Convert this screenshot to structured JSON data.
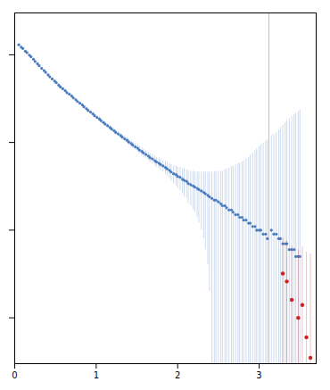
{
  "chart_data": {
    "type": "scatter",
    "log": "y",
    "tick_labels": "x",
    "grid": false,
    "xlim": [
      0,
      3.7
    ],
    "xticks": [
      0,
      1,
      2,
      3
    ],
    "ylim": [
      0.0003,
      3.0
    ],
    "yticks": [
      0.001,
      0.01,
      0.1,
      1
    ],
    "vline": {
      "x": 3.12,
      "color": "#aac4e0"
    },
    "series": [
      {
        "color": "#4a7bbf",
        "marker": "circle",
        "x": [
          0.05,
          0.08,
          0.1,
          0.13,
          0.15,
          0.18,
          0.2,
          0.23,
          0.25,
          0.28,
          0.3,
          0.33,
          0.36,
          0.38,
          0.41,
          0.43,
          0.46,
          0.49,
          0.51,
          0.54,
          0.56,
          0.59,
          0.62,
          0.64,
          0.67,
          0.7,
          0.72,
          0.75,
          0.77,
          0.8,
          0.83,
          0.85,
          0.88,
          0.9,
          0.93,
          0.96,
          0.98,
          1.01,
          1.04,
          1.06,
          1.09,
          1.11,
          1.14,
          1.17,
          1.19,
          1.22,
          1.24,
          1.27,
          1.3,
          1.32,
          1.35,
          1.38,
          1.4,
          1.43,
          1.45,
          1.48,
          1.51,
          1.53,
          1.56,
          1.58,
          1.61,
          1.64,
          1.66,
          1.69,
          1.72,
          1.74,
          1.77,
          1.79,
          1.82,
          1.85,
          1.87,
          1.9,
          1.92,
          1.95,
          1.98,
          2.0,
          2.03,
          2.06,
          2.08,
          2.11,
          2.13,
          2.16,
          2.19,
          2.21,
          2.24,
          2.26,
          2.29,
          2.32,
          2.34,
          2.37,
          2.39,
          2.42,
          2.45,
          2.47,
          2.5,
          2.53,
          2.55,
          2.58,
          2.6,
          2.63,
          2.66,
          2.68,
          2.71,
          2.74,
          2.76,
          2.79,
          2.81,
          2.84,
          2.87,
          2.89,
          2.92,
          2.95,
          2.97,
          3.0,
          3.02,
          3.05,
          3.08,
          3.1,
          3.15,
          3.18,
          3.21,
          3.24,
          3.26,
          3.29,
          3.32,
          3.34,
          3.37,
          3.4,
          3.43,
          3.45,
          3.48,
          3.5
        ],
        "values": [
          1.3,
          1.22,
          1.18,
          1.1,
          1.06,
          0.99,
          0.95,
          0.89,
          0.84,
          0.79,
          0.75,
          0.7,
          0.66,
          0.63,
          0.59,
          0.56,
          0.53,
          0.5,
          0.48,
          0.45,
          0.43,
          0.41,
          0.39,
          0.37,
          0.355,
          0.338,
          0.322,
          0.307,
          0.293,
          0.28,
          0.267,
          0.255,
          0.243,
          0.232,
          0.222,
          0.212,
          0.202,
          0.193,
          0.185,
          0.177,
          0.169,
          0.162,
          0.155,
          0.148,
          0.142,
          0.136,
          0.13,
          0.125,
          0.12,
          0.115,
          0.11,
          0.106,
          0.101,
          0.097,
          0.093,
          0.089,
          0.086,
          0.082,
          0.079,
          0.076,
          0.073,
          0.07,
          0.067,
          0.065,
          0.062,
          0.06,
          0.058,
          0.056,
          0.054,
          0.052,
          0.05,
          0.048,
          0.046,
          0.044,
          0.043,
          0.041,
          0.04,
          0.038,
          0.037,
          0.036,
          0.034,
          0.033,
          0.032,
          0.031,
          0.03,
          0.029,
          0.028,
          0.027,
          0.026,
          0.025,
          0.024,
          0.023,
          0.022,
          0.022,
          0.021,
          0.02,
          0.019,
          0.019,
          0.018,
          0.017,
          0.017,
          0.016,
          0.015,
          0.015,
          0.014,
          0.014,
          0.013,
          0.013,
          0.012,
          0.012,
          0.011,
          0.011,
          0.01,
          0.01,
          0.01,
          0.009,
          0.009,
          0.008,
          0.01,
          0.009,
          0.009,
          0.008,
          0.008,
          0.007,
          0.007,
          0.007,
          0.006,
          0.006,
          0.006,
          0.005,
          0.005,
          0.005
        ],
        "errors": [
          0.02,
          0.02,
          0.02,
          0.02,
          0.02,
          0.02,
          0.02,
          0.02,
          0.02,
          0.02,
          0.02,
          0.02,
          0.02,
          0.02,
          0.015,
          0.015,
          0.015,
          0.015,
          0.015,
          0.015,
          0.015,
          0.015,
          0.015,
          0.015,
          0.015,
          0.015,
          0.015,
          0.012,
          0.012,
          0.012,
          0.012,
          0.012,
          0.012,
          0.012,
          0.012,
          0.01,
          0.01,
          0.01,
          0.01,
          0.01,
          0.01,
          0.01,
          0.009,
          0.009,
          0.009,
          0.009,
          0.009,
          0.008,
          0.008,
          0.008,
          0.008,
          0.008,
          0.008,
          0.008,
          0.008,
          0.008,
          0.008,
          0.008,
          0.008,
          0.008,
          0.008,
          0.008,
          0.008,
          0.008,
          0.008,
          0.008,
          0.008,
          0.008,
          0.008,
          0.009,
          0.009,
          0.009,
          0.01,
          0.01,
          0.011,
          0.011,
          0.012,
          0.012,
          0.013,
          0.013,
          0.014,
          0.014,
          0.015,
          0.015,
          0.016,
          0.017,
          0.018,
          0.019,
          0.02,
          0.021,
          0.022,
          0.023,
          0.024,
          0.025,
          0.026,
          0.027,
          0.028,
          0.03,
          0.032,
          0.034,
          0.036,
          0.038,
          0.04,
          0.042,
          0.044,
          0.046,
          0.048,
          0.052,
          0.056,
          0.06,
          0.065,
          0.07,
          0.075,
          0.08,
          0.085,
          0.09,
          0.095,
          0.1,
          0.11,
          0.115,
          0.12,
          0.13,
          0.14,
          0.15,
          0.16,
          0.17,
          0.18,
          0.19,
          0.2,
          0.21,
          0.22,
          0.23
        ]
      },
      {
        "color": "#cc2222",
        "marker": "circle",
        "x": [
          3.29,
          3.34,
          3.4,
          3.48,
          3.53,
          3.58,
          3.63
        ],
        "values": [
          0.0032,
          0.0026,
          0.0016,
          0.001,
          0.0014,
          0.0006,
          0.00035
        ],
        "errors": [
          0.005,
          0.005,
          0.005,
          0.005,
          0.005,
          0.005,
          0.005
        ]
      }
    ]
  }
}
